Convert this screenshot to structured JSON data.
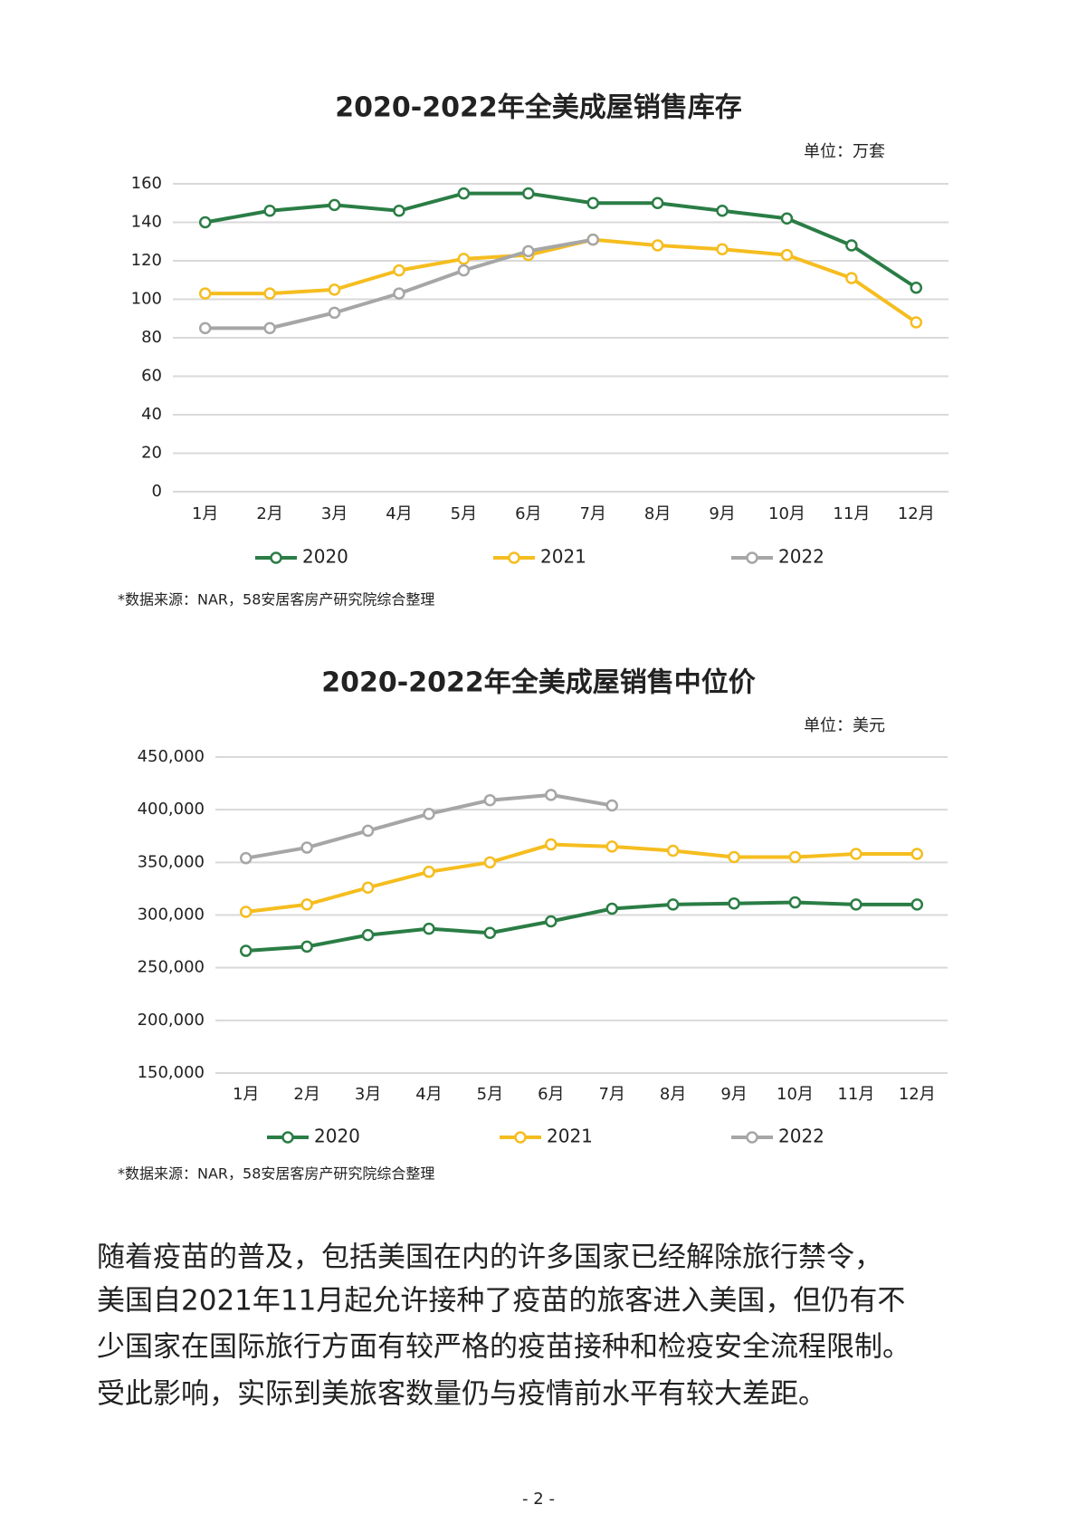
{
  "chart_data": [
    {
      "type": "line",
      "title": "2020-2022年全美成屋销售库存",
      "unit": "单位：万套",
      "categories": [
        "1月",
        "2月",
        "3月",
        "4月",
        "5月",
        "6月",
        "7月",
        "8月",
        "9月",
        "10月",
        "11月",
        "12月"
      ],
      "series": [
        {
          "name": "2020",
          "color": "#2a7d45",
          "values": [
            140,
            146,
            149,
            146,
            155,
            155,
            150,
            150,
            146,
            142,
            128,
            106
          ]
        },
        {
          "name": "2021",
          "color": "#f5bd1f",
          "values": [
            103,
            103,
            105,
            115,
            121,
            123,
            131,
            128,
            126,
            123,
            111,
            88
          ]
        },
        {
          "name": "2022",
          "color": "#a6a6a6",
          "values": [
            85,
            85,
            93,
            103,
            115,
            125,
            131,
            null,
            null,
            null,
            null,
            null
          ]
        }
      ],
      "ylim": [
        0,
        160
      ],
      "yticks": [
        0,
        20,
        40,
        60,
        80,
        100,
        120,
        140,
        160
      ],
      "grid": true,
      "source": "*数据来源：NAR，58安居客房产研究院综合整理"
    },
    {
      "type": "line",
      "title": "2020-2022年全美成屋销售中位价",
      "unit": "单位：美元",
      "categories": [
        "1月",
        "2月",
        "3月",
        "4月",
        "5月",
        "6月",
        "7月",
        "8月",
        "9月",
        "10月",
        "11月",
        "12月"
      ],
      "series": [
        {
          "name": "2020",
          "color": "#2a7d45",
          "values": [
            266000,
            270000,
            281000,
            287000,
            283000,
            294000,
            306000,
            310000,
            311000,
            312000,
            310000,
            310000
          ]
        },
        {
          "name": "2021",
          "color": "#f5bd1f",
          "values": [
            303000,
            310000,
            326000,
            341000,
            350000,
            367000,
            365000,
            361000,
            355000,
            355000,
            358000,
            358000
          ]
        },
        {
          "name": "2022",
          "color": "#a6a6a6",
          "values": [
            354000,
            364000,
            380000,
            396000,
            409000,
            414000,
            404000,
            null,
            null,
            null,
            null,
            null
          ]
        }
      ],
      "ylim": [
        150000,
        450000
      ],
      "yticks": [
        {
          "value": 150000,
          "label": "150,000"
        },
        {
          "value": 200000,
          "label": "200,000"
        },
        {
          "value": 250000,
          "label": "250,000"
        },
        {
          "value": 300000,
          "label": "300,000"
        },
        {
          "value": 350000,
          "label": "350,000"
        },
        {
          "value": 400000,
          "label": "400,000"
        },
        {
          "value": 450000,
          "label": "450,000"
        }
      ],
      "grid": true,
      "source": "*数据来源：NAR，58安居客房产研究院综合整理"
    }
  ],
  "paragraph": [
    "随着疫苗的普及，包括美国在内的许多国家已经解除旅行禁令，",
    "美国自2021年11月起允许接种了疫苗的旅客进入美国，但仍有不",
    "少国家在国际旅行方面有较严格的疫苗接种和检疫安全流程限制。",
    "受此影响，实际到美旅客数量仍与疫情前水平有较大差距。"
  ],
  "page_number": "- 2 -"
}
